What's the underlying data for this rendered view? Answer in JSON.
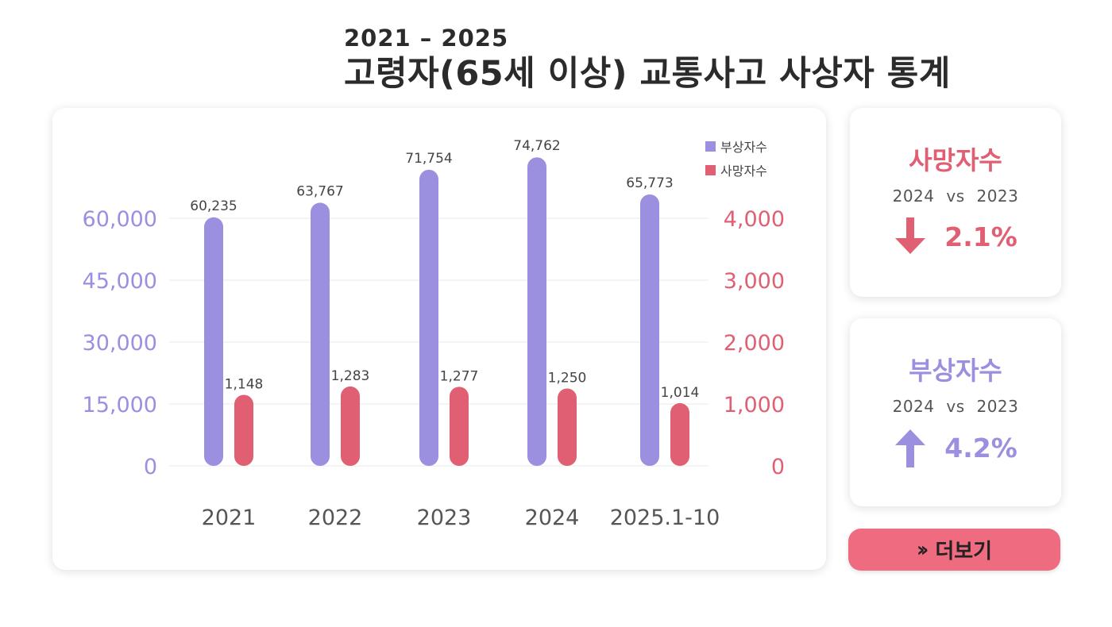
{
  "header": {
    "subtitle": "2021 – 2025",
    "title": "고령자(65세 이상) 교통사고 사상자 통계"
  },
  "colors": {
    "injury": "#9b8fe0",
    "death": "#e05f73",
    "button": "#ef6b80"
  },
  "chart_data": {
    "type": "bar",
    "categories": [
      "2021",
      "2022",
      "2023",
      "2024",
      "2025.1-10"
    ],
    "series": [
      {
        "name": "부상자수",
        "axis": "left",
        "values": [
          60235,
          63767,
          71754,
          74762,
          65773
        ],
        "labels": [
          "60,235",
          "63,767",
          "71,754",
          "74,762",
          "65,773"
        ]
      },
      {
        "name": "사망자수",
        "axis": "right",
        "values": [
          1148,
          1283,
          1277,
          1250,
          1014
        ],
        "labels": [
          "1,148",
          "1,283",
          "1,277",
          "1,250",
          "1,014"
        ]
      }
    ],
    "left_axis": {
      "ticks": [
        0,
        15000,
        30000,
        45000,
        60000
      ],
      "tick_labels": [
        "0",
        "15,000",
        "30,000",
        "45,000",
        "60,000"
      ]
    },
    "right_axis": {
      "ticks": [
        0,
        1000,
        2000,
        3000,
        4000
      ],
      "tick_labels": [
        "0",
        "1,000",
        "2,000",
        "3,000",
        "4,000"
      ]
    },
    "grid": true,
    "legend_position": "top-right"
  },
  "stats": {
    "death": {
      "title": "사망자수",
      "compare": "2024 vs 2023",
      "direction": "down",
      "icon": "arrow-down-icon",
      "value": "2.1%"
    },
    "injury": {
      "title": "부상자수",
      "compare": "2024 vs 2023",
      "direction": "up",
      "icon": "arrow-up-icon",
      "value": "4.2%"
    }
  },
  "more_button": {
    "icon": "double-chevron-right-icon",
    "label": "더보기"
  }
}
